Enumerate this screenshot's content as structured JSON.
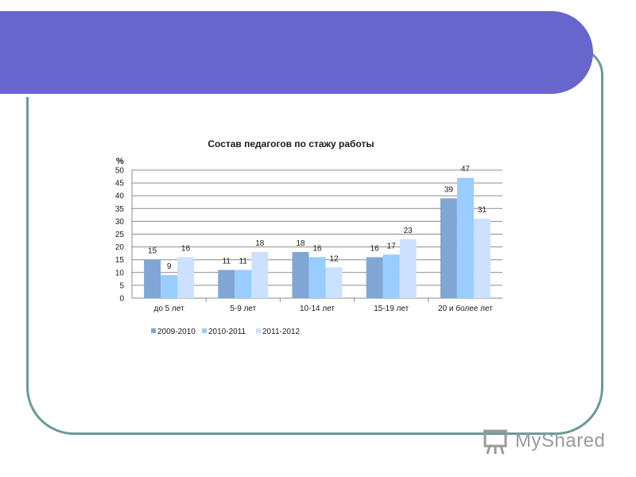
{
  "colors": {
    "banner": "#6666cc",
    "frame": "#6a9a98",
    "series": [
      "#7fa6d4",
      "#99ccff",
      "#cce0ff"
    ]
  },
  "chart_data": {
    "type": "bar",
    "title": "Состав педагогов по стажу работы",
    "ylabel": "%",
    "xlabel": "",
    "ylim": [
      0,
      50
    ],
    "yticks": [
      0,
      5,
      10,
      15,
      20,
      25,
      30,
      35,
      40,
      45,
      50
    ],
    "grid": true,
    "legend": "bottom",
    "categories": [
      "до 5 лет",
      "5-9 лет",
      "10-14 лет",
      "15-19 лет",
      "20 и более лет"
    ],
    "series": [
      {
        "name": "2009-2010",
        "values": [
          15,
          11,
          18,
          16,
          39
        ]
      },
      {
        "name": "2010-2011",
        "values": [
          9,
          11,
          16,
          17,
          47
        ]
      },
      {
        "name": "2011-2012",
        "values": [
          16,
          18,
          12,
          23,
          31
        ]
      }
    ]
  },
  "watermark": {
    "text": "MyShared",
    "icon": "presentation-board-icon"
  }
}
